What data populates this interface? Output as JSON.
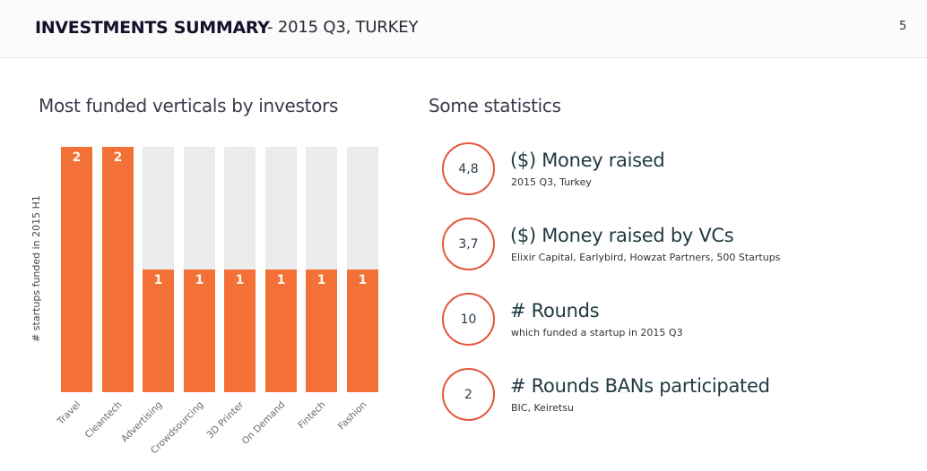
{
  "header": {
    "title": "INVESTMENTS SUMMARY",
    "subtitle": "- 2015 Q3, TURKEY",
    "page_number": "5"
  },
  "left_section": {
    "title": "Most funded verticals by investors"
  },
  "right_section": {
    "title": "Some statistics"
  },
  "colors": {
    "accent_orange": "#f37137",
    "track_gray": "#ebebeb",
    "circle_red": "#e2553a"
  },
  "chart_data": {
    "type": "bar",
    "title": "Most funded verticals by investors",
    "xlabel": "",
    "ylabel": "# startups funded in 2015 H1",
    "categories": [
      "Travel",
      "Cleantech",
      "Advertising",
      "Crowdsourcing",
      "3D Printer",
      "On Demand",
      "Fintech",
      "Fashion"
    ],
    "values": [
      2,
      2,
      1,
      1,
      1,
      1,
      1,
      1
    ],
    "value_labels": [
      "2",
      "2",
      "1",
      "1",
      "1",
      "1",
      "1",
      "1"
    ],
    "ylim": [
      0,
      2
    ],
    "grid": false,
    "legend": "none"
  },
  "stats": [
    {
      "value": "4,8",
      "title": "($) Money raised",
      "subtitle": "2015 Q3, Turkey"
    },
    {
      "value": "3,7",
      "title": "($) Money raised by VCs",
      "subtitle": "Elixir Capital, Earlybird, Howzat Partners, 500 Startups"
    },
    {
      "value": "10",
      "title": "# Rounds",
      "subtitle": "which funded a startup in 2015 Q3"
    },
    {
      "value": "2",
      "title": "# Rounds BANs participated",
      "subtitle": "BIC, Keiretsu"
    }
  ]
}
